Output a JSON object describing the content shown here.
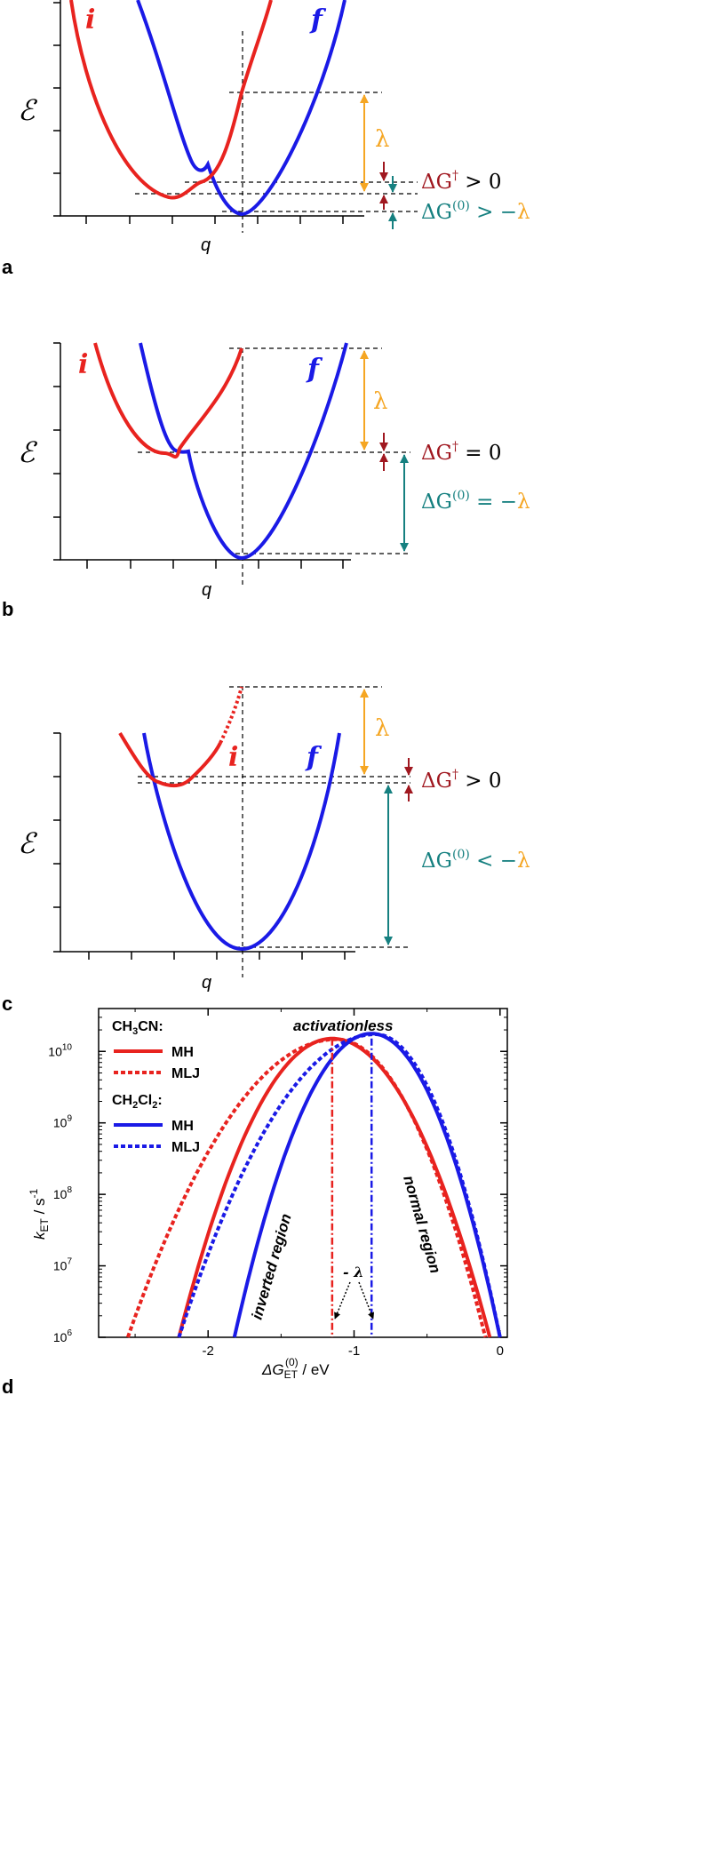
{
  "chart_data": [
    {
      "panel": "a",
      "type": "line",
      "xlabel": "q",
      "ylabel": "ℰ",
      "curve_labels": {
        "initial": "i",
        "final": "f"
      },
      "annotations": {
        "lambda": "λ",
        "activation": {
          "symbol": "ΔG",
          "sup": "†",
          "relation": " > 0"
        },
        "driving_force": {
          "symbol": "ΔG",
          "sup": "(0)",
          "relation": " > −",
          "rhs": "λ"
        }
      },
      "colors": {
        "initial": "#e8231f",
        "final": "#1a1ae6",
        "lambda": "#f5a623",
        "activation": "#a01820",
        "driving_force": "#168080"
      }
    },
    {
      "panel": "b",
      "type": "line",
      "xlabel": "q",
      "ylabel": "ℰ",
      "curve_labels": {
        "initial": "i",
        "final": "f"
      },
      "annotations": {
        "lambda": "λ",
        "activation": {
          "symbol": "ΔG",
          "sup": "†",
          "relation": " = 0"
        },
        "driving_force": {
          "symbol": "ΔG",
          "sup": "(0)",
          "relation": " = −",
          "rhs": "λ"
        }
      }
    },
    {
      "panel": "c",
      "type": "line",
      "xlabel": "q",
      "ylabel": "ℰ",
      "curve_labels": {
        "initial": "i",
        "final": "f"
      },
      "annotations": {
        "lambda": "λ",
        "activation": {
          "symbol": "ΔG",
          "sup": "†",
          "relation": " > 0"
        },
        "driving_force": {
          "symbol": "ΔG",
          "sup": "(0)",
          "relation": " < −",
          "rhs": "λ"
        }
      }
    },
    {
      "panel": "d",
      "type": "line",
      "title": "activationless",
      "xlabel": {
        "main": "ΔG",
        "sub": "ET",
        "sup": "(0)",
        "unit": " / eV"
      },
      "ylabel": {
        "main": "k",
        "sub": "ET",
        "unit": "  / s",
        "sup": "-1"
      },
      "x_ticks": [
        "-2",
        "-1",
        "0"
      ],
      "xlim": [
        -2.75,
        0.05
      ],
      "ylim_log10": [
        6,
        10.6
      ],
      "y_ticks": [
        {
          "base": "10",
          "exp": "6"
        },
        {
          "base": "10",
          "exp": "7"
        },
        {
          "base": "10",
          "exp": "8"
        },
        {
          "base": "10",
          "exp": "9"
        },
        {
          "base": "10",
          "exp": "10"
        }
      ],
      "legend": {
        "groups": [
          {
            "header": "CH",
            "sub1": "3",
            "rest": "CN:",
            "entries": [
              {
                "label": "MH",
                "style": "solid",
                "color": "#e8231f"
              },
              {
                "label": "MLJ",
                "style": "dotted",
                "color": "#e8231f"
              }
            ]
          },
          {
            "header": "CH",
            "sub1": "2",
            "rest": "Cl",
            "sub2": "2",
            "tail": ":",
            "entries": [
              {
                "label": "MH",
                "style": "solid",
                "color": "#1a1ae6"
              },
              {
                "label": "MLJ",
                "style": "dotted",
                "color": "#1a1ae6"
              }
            ]
          }
        ],
        "placement": "top-left"
      },
      "region_labels": {
        "inverted": "inverted region",
        "normal": "normal region"
      },
      "lambda_label": "- λ",
      "series": [
        {
          "name": "CH3CN MH",
          "style": "solid",
          "color": "#e8231f",
          "peak_x": -1.15,
          "peak_log10_k": 10.18,
          "x_start": -2.2,
          "x_end": -0.07
        },
        {
          "name": "CH3CN MLJ",
          "style": "dotted",
          "color": "#e8231f",
          "peak_x": -1.12,
          "peak_log10_k": 10.17,
          "x_start": -2.55,
          "x_end": -0.1
        },
        {
          "name": "CH2Cl2 MH",
          "style": "solid",
          "color": "#1a1ae6",
          "peak_x": -0.88,
          "peak_log10_k": 10.25,
          "x_start": -1.82,
          "x_end": 0.0
        },
        {
          "name": "CH2Cl2 MLJ",
          "style": "dotted",
          "color": "#1a1ae6",
          "peak_x": -0.85,
          "peak_log10_k": 10.24,
          "x_start": -2.2,
          "x_end": 0.0
        }
      ],
      "vertical_markers": [
        {
          "x": -1.15,
          "color": "#e8231f"
        },
        {
          "x": -0.88,
          "color": "#1a1ae6"
        }
      ]
    }
  ]
}
